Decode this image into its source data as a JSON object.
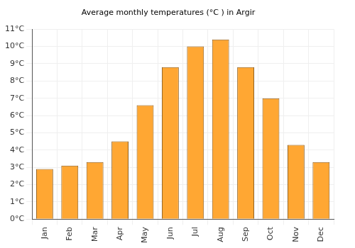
{
  "chart_data": {
    "type": "bar",
    "title": "Average monthly temperatures (°C ) in Argir",
    "categories": [
      "Jan",
      "Feb",
      "Mar",
      "Apr",
      "May",
      "Jun",
      "Jul",
      "Aug",
      "Sep",
      "Oct",
      "Nov",
      "Dec"
    ],
    "values": [
      2.9,
      3.1,
      3.3,
      4.5,
      6.6,
      8.8,
      10.0,
      10.4,
      8.8,
      7.0,
      4.3,
      3.3
    ],
    "color": "#ffa733",
    "ylim": [
      0,
      11
    ],
    "yticks": [
      {
        "value": 0,
        "label": "0°C"
      },
      {
        "value": 1,
        "label": "1°C"
      },
      {
        "value": 2,
        "label": "2°C"
      },
      {
        "value": 3,
        "label": "3°C"
      },
      {
        "value": 4,
        "label": "4°C"
      },
      {
        "value": 5,
        "label": "5°C"
      },
      {
        "value": 6,
        "label": "6°C"
      },
      {
        "value": 7,
        "label": "7°C"
      },
      {
        "value": 8,
        "label": "8°C"
      },
      {
        "value": 9,
        "label": "9°C"
      },
      {
        "value": 10,
        "label": "10°C"
      },
      {
        "value": 11,
        "label": "11°C"
      }
    ],
    "grid": true
  }
}
